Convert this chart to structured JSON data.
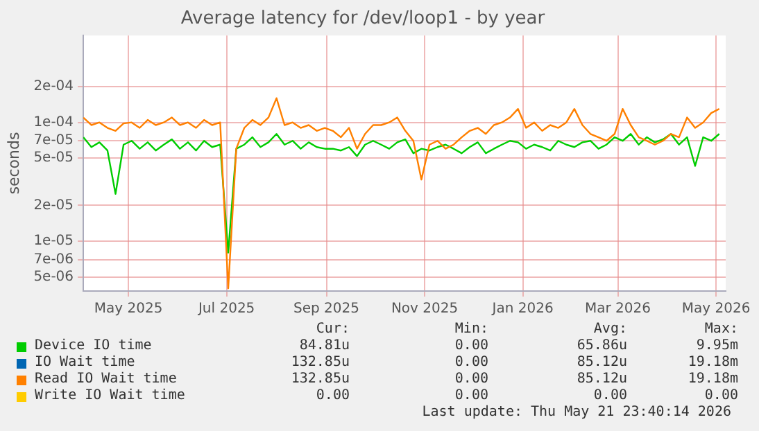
{
  "chart_data": {
    "type": "line",
    "title": "Average latency for /dev/loop1 - by year",
    "ylabel": "seconds",
    "log": "y",
    "grid": true,
    "legend": "bottom",
    "marker": "none",
    "line_style": "solid",
    "x": [
      "2025-04-03",
      "2025-04-08",
      "2025-04-13",
      "2025-04-18",
      "2025-04-23",
      "2025-04-28",
      "2025-05-03",
      "2025-05-08",
      "2025-05-13",
      "2025-05-18",
      "2025-05-23",
      "2025-05-28",
      "2025-06-02",
      "2025-06-07",
      "2025-06-12",
      "2025-06-17",
      "2025-06-22",
      "2025-06-27",
      "2025-07-02",
      "2025-07-07",
      "2025-07-12",
      "2025-07-17",
      "2025-07-22",
      "2025-07-27",
      "2025-08-01",
      "2025-08-06",
      "2025-08-11",
      "2025-08-16",
      "2025-08-21",
      "2025-08-26",
      "2025-08-31",
      "2025-09-05",
      "2025-09-10",
      "2025-09-15",
      "2025-09-20",
      "2025-09-25",
      "2025-09-30",
      "2025-10-05",
      "2025-10-10",
      "2025-10-15",
      "2025-10-20",
      "2025-10-25",
      "2025-10-30",
      "2025-11-04",
      "2025-11-09",
      "2025-11-14",
      "2025-11-19",
      "2025-11-24",
      "2025-11-29",
      "2025-12-04",
      "2025-12-09",
      "2025-12-14",
      "2025-12-19",
      "2025-12-24",
      "2025-12-29",
      "2026-01-03",
      "2026-01-08",
      "2026-01-13",
      "2026-01-18",
      "2026-01-23",
      "2026-01-28",
      "2026-02-02",
      "2026-02-07",
      "2026-02-12",
      "2026-02-17",
      "2026-02-22",
      "2026-02-27",
      "2026-03-04",
      "2026-03-09",
      "2026-03-14",
      "2026-03-19",
      "2026-03-24",
      "2026-03-29",
      "2026-04-03",
      "2026-04-08",
      "2026-04-13",
      "2026-04-18",
      "2026-04-23",
      "2026-04-28",
      "2026-05-03"
    ],
    "xlim": [
      "2025-04-03",
      "2026-05-07"
    ],
    "xticks": [
      {
        "value": "2025-05",
        "label": "May 2025"
      },
      {
        "value": "2025-07",
        "label": "Jul 2025"
      },
      {
        "value": "2025-09",
        "label": "Sep 2025"
      },
      {
        "value": "2025-11",
        "label": "Nov 2025"
      },
      {
        "value": "2026-01",
        "label": "Jan 2026"
      },
      {
        "value": "2026-03",
        "label": "Mar 2026"
      },
      {
        "value": "2026-05",
        "label": "May 2026"
      }
    ],
    "ylim": [
      3.8e-06,
      0.00054
    ],
    "yticks": [
      {
        "value": 5e-06,
        "label": "5e-06"
      },
      {
        "value": 7e-06,
        "label": "7e-06"
      },
      {
        "value": 1e-05,
        "label": "1e-05"
      },
      {
        "value": 2e-05,
        "label": "2e-05"
      },
      {
        "value": 5e-05,
        "label": "5e-05"
      },
      {
        "value": 7e-05,
        "label": "7e-05"
      },
      {
        "value": 0.0001,
        "label": "1e-04"
      },
      {
        "value": 0.0002,
        "label": "2e-04"
      }
    ],
    "series": [
      {
        "name": "Device IO time",
        "color": "#00cc00",
        "values": [
          7.5e-05,
          6.2e-05,
          6.8e-05,
          5.8e-05,
          2.5e-05,
          6.5e-05,
          7e-05,
          6e-05,
          6.8e-05,
          5.8e-05,
          6.5e-05,
          7.2e-05,
          6e-05,
          6.8e-05,
          5.8e-05,
          7e-05,
          6.2e-05,
          6.5e-05,
          8e-06,
          6e-05,
          6.5e-05,
          7.5e-05,
          6.2e-05,
          6.8e-05,
          8e-05,
          6.5e-05,
          7e-05,
          6e-05,
          6.8e-05,
          6.2e-05,
          6e-05,
          6e-05,
          5.8e-05,
          6.2e-05,
          5.2e-05,
          6.5e-05,
          7e-05,
          6.5e-05,
          6e-05,
          6.8e-05,
          7.2e-05,
          5.5e-05,
          6e-05,
          5.8e-05,
          6.2e-05,
          6.5e-05,
          6e-05,
          5.5e-05,
          6.2e-05,
          6.8e-05,
          5.5e-05,
          6e-05,
          6.5e-05,
          7e-05,
          6.8e-05,
          6e-05,
          6.5e-05,
          6.2e-05,
          5.8e-05,
          7e-05,
          6.5e-05,
          6.2e-05,
          6.8e-05,
          7e-05,
          6e-05,
          6.5e-05,
          7.5e-05,
          7e-05,
          8e-05,
          6.5e-05,
          7.5e-05,
          6.8e-05,
          7.2e-05,
          8e-05,
          6.5e-05,
          7.5e-05,
          4.3e-05,
          7.5e-05,
          7e-05,
          8e-05
        ]
      },
      {
        "name": "IO Wait time",
        "color": "#0066b3",
        "values": [
          null,
          null,
          null,
          null,
          null,
          null,
          null,
          null,
          null,
          null,
          null,
          null,
          null,
          null,
          null,
          null,
          null,
          null,
          null,
          null,
          null,
          null,
          null,
          null,
          null,
          null,
          null,
          null,
          null,
          null,
          null,
          null,
          null,
          null,
          null,
          null,
          null,
          null,
          null,
          null,
          null,
          null,
          null,
          null,
          null,
          null,
          null,
          null,
          null,
          null,
          null,
          null,
          null,
          null,
          null,
          null,
          null,
          null,
          null,
          null,
          null,
          null,
          null,
          null,
          null,
          null,
          null,
          null,
          null,
          null,
          null,
          null,
          null,
          null,
          null,
          null,
          null,
          null,
          null,
          null
        ]
      },
      {
        "name": "Read IO Wait time",
        "color": "#ff8000",
        "values": [
          0.00011,
          9.5e-05,
          0.0001,
          9e-05,
          8.5e-05,
          9.8e-05,
          0.0001,
          9e-05,
          0.000105,
          9.5e-05,
          0.0001,
          0.00011,
          9.5e-05,
          0.0001,
          9e-05,
          0.000105,
          9.5e-05,
          0.0001,
          4e-06,
          6e-05,
          9e-05,
          0.000105,
          9.5e-05,
          0.00011,
          0.00016,
          9.5e-05,
          0.0001,
          9e-05,
          9.5e-05,
          8.5e-05,
          9e-05,
          8.5e-05,
          7.5e-05,
          9e-05,
          6e-05,
          8e-05,
          9.5e-05,
          9.5e-05,
          0.0001,
          0.00011,
          8.5e-05,
          7e-05,
          3.3e-05,
          6.5e-05,
          7e-05,
          6e-05,
          6.5e-05,
          7.5e-05,
          8.5e-05,
          9e-05,
          8e-05,
          9.5e-05,
          0.0001,
          0.00011,
          0.00013,
          9e-05,
          0.0001,
          8.5e-05,
          9.5e-05,
          9e-05,
          0.0001,
          0.00013,
          9.5e-05,
          8e-05,
          7.5e-05,
          7e-05,
          8e-05,
          0.00013,
          9.5e-05,
          7.5e-05,
          7e-05,
          6.5e-05,
          7e-05,
          8e-05,
          7.5e-05,
          0.00011,
          9e-05,
          0.0001,
          0.00012,
          0.00013
        ]
      },
      {
        "name": "Write IO Wait time",
        "color": "#ffcc00",
        "values": [
          null,
          null,
          null,
          null,
          null,
          null,
          null,
          null,
          null,
          null,
          null,
          null,
          null,
          null,
          null,
          null,
          null,
          null,
          null,
          null,
          null,
          null,
          null,
          null,
          null,
          null,
          null,
          null,
          null,
          null,
          null,
          null,
          null,
          null,
          null,
          null,
          null,
          null,
          null,
          null,
          null,
          null,
          null,
          null,
          null,
          null,
          null,
          null,
          null,
          null,
          null,
          null,
          null,
          null,
          null,
          null,
          null,
          null,
          null,
          null,
          null,
          null,
          null,
          null,
          null,
          null,
          null,
          null,
          null,
          null,
          null,
          null,
          null,
          null,
          null,
          null,
          null,
          null,
          null,
          null
        ]
      }
    ],
    "annotations": [
      "Cur:",
      "Min:",
      "Avg:",
      "Max:",
      "84.81u",
      "0.00",
      "65.86u",
      "9.95m",
      "132.85u",
      "0.00",
      "85.12u",
      "19.18m",
      "132.85u",
      "0.00",
      "85.12u",
      "19.18m",
      "0.00",
      "0.00",
      "0.00",
      "0.00",
      "Last update: Thu May 21 23:40:14 2026"
    ]
  }
}
